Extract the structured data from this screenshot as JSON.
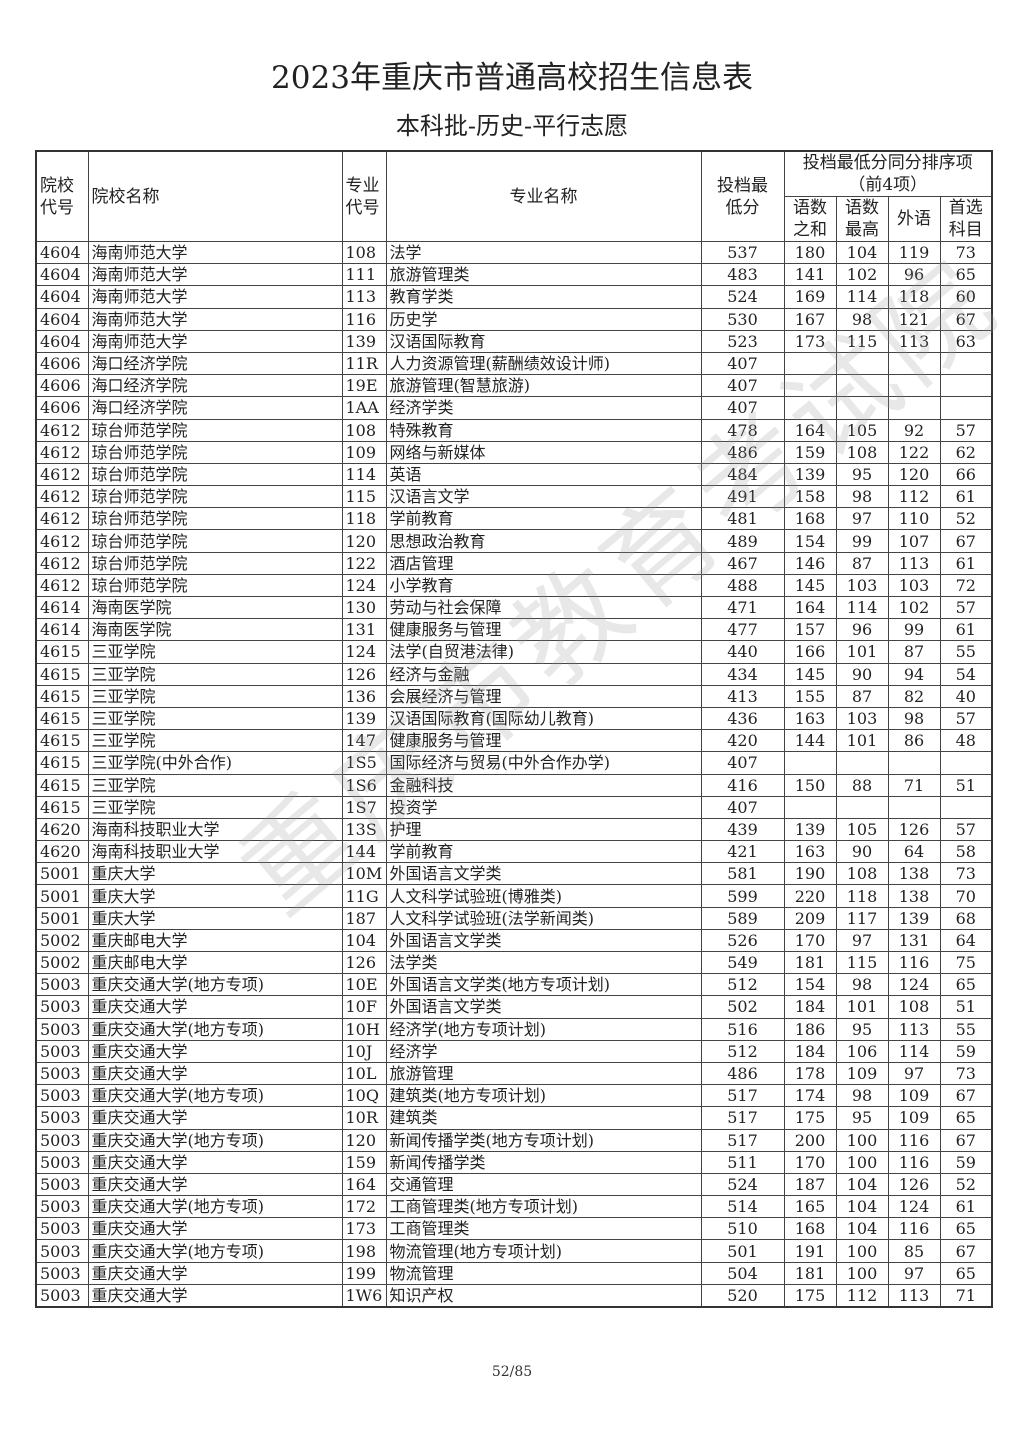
{
  "title": "2023年重庆市普通高校招生信息表",
  "subtitle": "本科批-历史-平行志愿",
  "watermark": "重庆市教育考试院",
  "headers": {
    "school_code": "院校代号",
    "school_name": "院校名称",
    "major_code": "专业代号",
    "major_name": "专业名称",
    "min_score": "投档最低分",
    "tiebreak": "投档最低分同分排序项（前4项）",
    "tb1": "语数之和",
    "tb2": "语数最高",
    "tb3": "外语",
    "tb4": "首选科目"
  },
  "rows": [
    [
      "4604",
      "海南师范大学",
      "108",
      "法学",
      "537",
      "180",
      "104",
      "119",
      "73"
    ],
    [
      "4604",
      "海南师范大学",
      "111",
      "旅游管理类",
      "483",
      "141",
      "102",
      "96",
      "65"
    ],
    [
      "4604",
      "海南师范大学",
      "113",
      "教育学类",
      "524",
      "169",
      "114",
      "118",
      "60"
    ],
    [
      "4604",
      "海南师范大学",
      "116",
      "历史学",
      "530",
      "167",
      "98",
      "121",
      "67"
    ],
    [
      "4604",
      "海南师范大学",
      "139",
      "汉语国际教育",
      "523",
      "173",
      "115",
      "113",
      "63"
    ],
    [
      "4606",
      "海口经济学院",
      "11R",
      "人力资源管理(薪酬绩效设计师)",
      "407",
      "",
      "",
      "",
      ""
    ],
    [
      "4606",
      "海口经济学院",
      "19E",
      "旅游管理(智慧旅游)",
      "407",
      "",
      "",
      "",
      ""
    ],
    [
      "4606",
      "海口经济学院",
      "1AA",
      "经济学类",
      "407",
      "",
      "",
      "",
      ""
    ],
    [
      "4612",
      "琼台师范学院",
      "108",
      "特殊教育",
      "478",
      "164",
      "105",
      "92",
      "57"
    ],
    [
      "4612",
      "琼台师范学院",
      "109",
      "网络与新媒体",
      "486",
      "159",
      "108",
      "122",
      "62"
    ],
    [
      "4612",
      "琼台师范学院",
      "114",
      "英语",
      "484",
      "139",
      "95",
      "120",
      "66"
    ],
    [
      "4612",
      "琼台师范学院",
      "115",
      "汉语言文学",
      "491",
      "158",
      "98",
      "112",
      "61"
    ],
    [
      "4612",
      "琼台师范学院",
      "118",
      "学前教育",
      "481",
      "168",
      "97",
      "110",
      "52"
    ],
    [
      "4612",
      "琼台师范学院",
      "120",
      "思想政治教育",
      "489",
      "154",
      "99",
      "107",
      "67"
    ],
    [
      "4612",
      "琼台师范学院",
      "122",
      "酒店管理",
      "467",
      "146",
      "87",
      "113",
      "61"
    ],
    [
      "4612",
      "琼台师范学院",
      "124",
      "小学教育",
      "488",
      "145",
      "103",
      "103",
      "72"
    ],
    [
      "4614",
      "海南医学院",
      "130",
      "劳动与社会保障",
      "471",
      "164",
      "114",
      "102",
      "57"
    ],
    [
      "4614",
      "海南医学院",
      "131",
      "健康服务与管理",
      "477",
      "157",
      "96",
      "99",
      "61"
    ],
    [
      "4615",
      "三亚学院",
      "124",
      "法学(自贸港法律)",
      "440",
      "166",
      "101",
      "87",
      "55"
    ],
    [
      "4615",
      "三亚学院",
      "126",
      "经济与金融",
      "434",
      "145",
      "90",
      "94",
      "54"
    ],
    [
      "4615",
      "三亚学院",
      "136",
      "会展经济与管理",
      "413",
      "155",
      "87",
      "82",
      "40"
    ],
    [
      "4615",
      "三亚学院",
      "139",
      "汉语国际教育(国际幼儿教育)",
      "436",
      "163",
      "103",
      "98",
      "57"
    ],
    [
      "4615",
      "三亚学院",
      "147",
      "健康服务与管理",
      "420",
      "144",
      "101",
      "86",
      "48"
    ],
    [
      "4615",
      "三亚学院(中外合作)",
      "1S5",
      "国际经济与贸易(中外合作办学)",
      "407",
      "",
      "",
      "",
      ""
    ],
    [
      "4615",
      "三亚学院",
      "1S6",
      "金融科技",
      "416",
      "150",
      "88",
      "71",
      "51"
    ],
    [
      "4615",
      "三亚学院",
      "1S7",
      "投资学",
      "407",
      "",
      "",
      "",
      ""
    ],
    [
      "4620",
      "海南科技职业大学",
      "13S",
      "护理",
      "439",
      "139",
      "105",
      "126",
      "57"
    ],
    [
      "4620",
      "海南科技职业大学",
      "144",
      "学前教育",
      "421",
      "163",
      "90",
      "64",
      "58"
    ],
    [
      "5001",
      "重庆大学",
      "10M",
      "外国语言文学类",
      "581",
      "190",
      "108",
      "138",
      "73"
    ],
    [
      "5001",
      "重庆大学",
      "11G",
      "人文科学试验班(博雅类)",
      "599",
      "220",
      "118",
      "138",
      "70"
    ],
    [
      "5001",
      "重庆大学",
      "187",
      "人文科学试验班(法学新闻类)",
      "589",
      "209",
      "117",
      "139",
      "68"
    ],
    [
      "5002",
      "重庆邮电大学",
      "104",
      "外国语言文学类",
      "526",
      "170",
      "97",
      "131",
      "64"
    ],
    [
      "5002",
      "重庆邮电大学",
      "126",
      "法学类",
      "549",
      "181",
      "115",
      "116",
      "75"
    ],
    [
      "5003",
      "重庆交通大学(地方专项)",
      "10E",
      "外国语言文学类(地方专项计划)",
      "512",
      "154",
      "98",
      "124",
      "65"
    ],
    [
      "5003",
      "重庆交通大学",
      "10F",
      "外国语言文学类",
      "502",
      "184",
      "101",
      "108",
      "51"
    ],
    [
      "5003",
      "重庆交通大学(地方专项)",
      "10H",
      "经济学(地方专项计划)",
      "516",
      "186",
      "95",
      "113",
      "55"
    ],
    [
      "5003",
      "重庆交通大学",
      "10J",
      "经济学",
      "512",
      "184",
      "106",
      "114",
      "59"
    ],
    [
      "5003",
      "重庆交通大学",
      "10L",
      "旅游管理",
      "486",
      "178",
      "109",
      "97",
      "73"
    ],
    [
      "5003",
      "重庆交通大学(地方专项)",
      "10Q",
      "建筑类(地方专项计划)",
      "517",
      "174",
      "98",
      "109",
      "67"
    ],
    [
      "5003",
      "重庆交通大学",
      "10R",
      "建筑类",
      "517",
      "175",
      "95",
      "109",
      "65"
    ],
    [
      "5003",
      "重庆交通大学(地方专项)",
      "120",
      "新闻传播学类(地方专项计划)",
      "517",
      "200",
      "100",
      "116",
      "67"
    ],
    [
      "5003",
      "重庆交通大学",
      "159",
      "新闻传播学类",
      "511",
      "170",
      "100",
      "116",
      "59"
    ],
    [
      "5003",
      "重庆交通大学",
      "164",
      "交通管理",
      "524",
      "187",
      "104",
      "126",
      "52"
    ],
    [
      "5003",
      "重庆交通大学(地方专项)",
      "172",
      "工商管理类(地方专项计划)",
      "514",
      "165",
      "104",
      "124",
      "61"
    ],
    [
      "5003",
      "重庆交通大学",
      "173",
      "工商管理类",
      "510",
      "168",
      "104",
      "116",
      "65"
    ],
    [
      "5003",
      "重庆交通大学(地方专项)",
      "198",
      "物流管理(地方专项计划)",
      "501",
      "191",
      "100",
      "85",
      "67"
    ],
    [
      "5003",
      "重庆交通大学",
      "199",
      "物流管理",
      "504",
      "181",
      "100",
      "97",
      "65"
    ],
    [
      "5003",
      "重庆交通大学",
      "1W6",
      "知识产权",
      "520",
      "175",
      "112",
      "113",
      "71"
    ]
  ],
  "footer": "52/85"
}
